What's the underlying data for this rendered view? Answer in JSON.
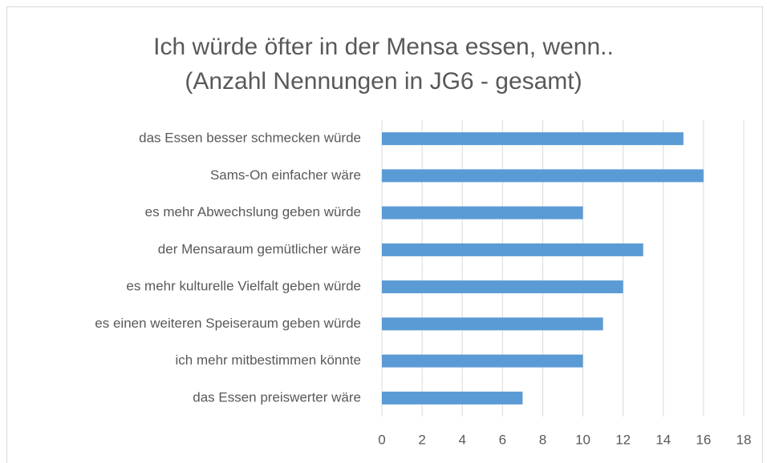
{
  "chart_data": {
    "type": "hbar",
    "title": [
      "Ich würde öfter in der Mensa essen, wenn..",
      "(Anzahl Nennungen in JG6 - gesamt)"
    ],
    "categories": [
      "das Essen besser schmecken würde",
      "Sams-On einfacher wäre",
      "es mehr Abwechslung geben würde",
      "der Mensaraum gemütlicher wäre",
      "es mehr kulturelle Vielfalt geben würde",
      "es einen weiteren Speiseraum geben würde",
      "ich mehr mitbestimmen könnte",
      "das Essen preiswerter wäre"
    ],
    "values": [
      15,
      16,
      10,
      13,
      12,
      11,
      10,
      7
    ],
    "color": "#5b9bd5",
    "xlim": [
      0,
      18
    ],
    "xticks": [
      0,
      2,
      4,
      6,
      8,
      10,
      12,
      14,
      16,
      18
    ],
    "grid": true
  }
}
